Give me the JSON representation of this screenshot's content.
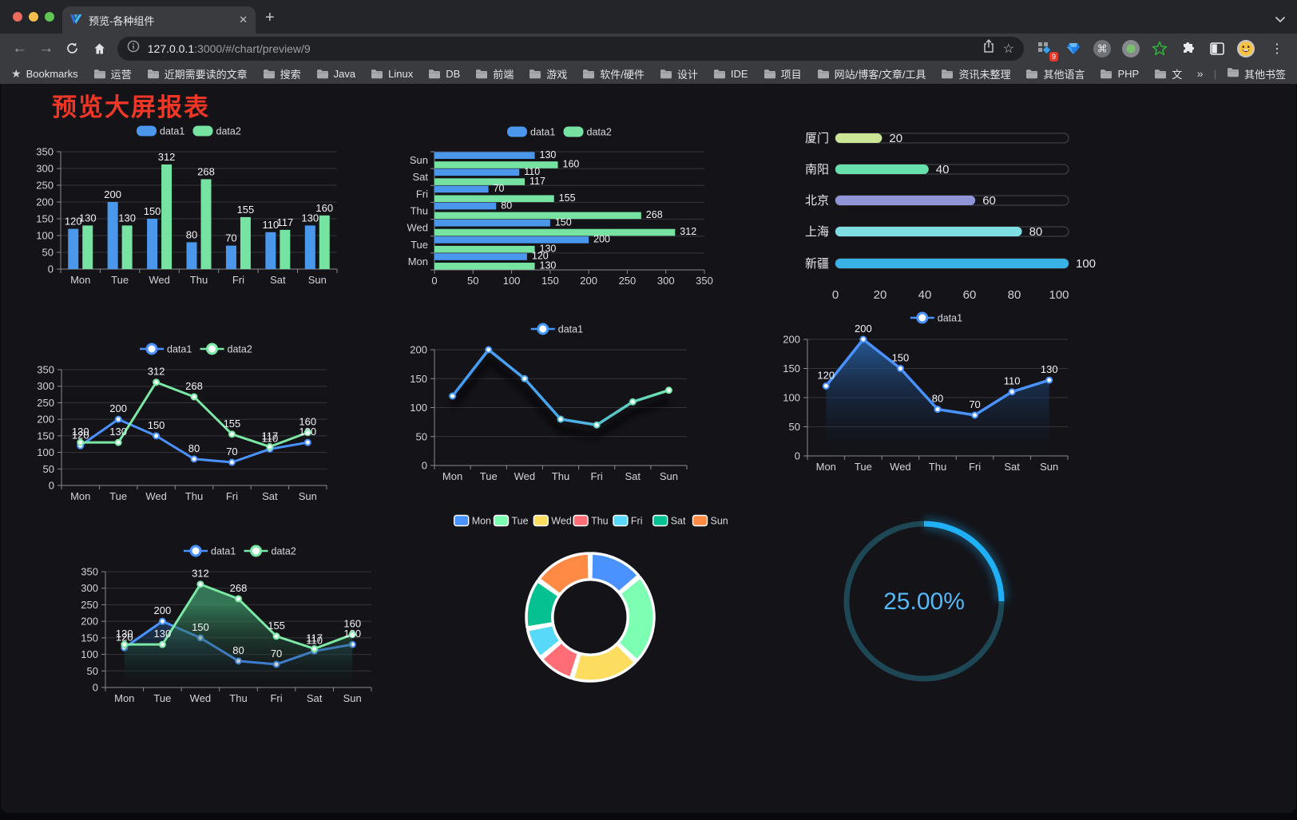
{
  "browser": {
    "tab": {
      "title": "预览-各种组件",
      "close_glyph": "✕",
      "new_tab_glyph": "+"
    },
    "url": {
      "host": "127.0.0.1",
      "rest": ":3000/#/chart/preview/9"
    },
    "extension_badge": "9",
    "bookmarks_label": "Bookmarks",
    "bookmarks": [
      "运营",
      "近期需要读的文章",
      "搜索",
      "Java",
      "Linux",
      "DB",
      "前端",
      "游戏",
      "软件/硬件",
      "设计",
      "IDE",
      "项目",
      "网站/博客/文章/工具",
      "资讯未整理",
      "其他语言",
      "PHP",
      "文件服务器"
    ],
    "bookmarks_overflow": "»",
    "other_bookmarks": "其他书签"
  },
  "page": {
    "title": "预览大屏报表",
    "title_color": "#ee3726"
  },
  "chart_data": [
    {
      "id": "bar-grouped",
      "type": "bar",
      "categories": [
        "Mon",
        "Tue",
        "Wed",
        "Thu",
        "Fri",
        "Sat",
        "Sun"
      ],
      "series": [
        {
          "name": "data1",
          "color": "#4B97EC",
          "values": [
            120,
            200,
            150,
            80,
            70,
            110,
            130
          ]
        },
        {
          "name": "data2",
          "color": "#77E3A3",
          "values": [
            130,
            130,
            312,
            268,
            155,
            117,
            160
          ]
        }
      ],
      "ylim": [
        0,
        350
      ],
      "ytick": 50,
      "legend_position": "top",
      "grid": true
    },
    {
      "id": "hbar-grouped",
      "type": "hbar",
      "categories": [
        "Mon",
        "Tue",
        "Wed",
        "Thu",
        "Fri",
        "Sat",
        "Sun"
      ],
      "series": [
        {
          "name": "data1",
          "color": "#4B97EC",
          "values": [
            120,
            200,
            150,
            80,
            70,
            110,
            130
          ]
        },
        {
          "name": "data2",
          "color": "#77E3A3",
          "values": [
            130,
            130,
            312,
            268,
            155,
            117,
            160
          ]
        }
      ],
      "xlim": [
        0,
        350
      ],
      "xtick": 50,
      "legend_position": "top",
      "grid": true
    },
    {
      "id": "city-progress",
      "type": "progress",
      "items": [
        {
          "label": "厦门",
          "value": 20,
          "color": "#CBE796"
        },
        {
          "label": "南阳",
          "value": 40,
          "color": "#68E0AE"
        },
        {
          "label": "北京",
          "value": 60,
          "color": "#9095D8"
        },
        {
          "label": "上海",
          "value": 80,
          "color": "#7EDEE2"
        },
        {
          "label": "新疆",
          "value": 100,
          "color": "#39B3E6"
        }
      ],
      "xticks": [
        0,
        20,
        40,
        60,
        80,
        100
      ],
      "xlim": [
        0,
        100
      ]
    },
    {
      "id": "line-two",
      "type": "line",
      "categories": [
        "Mon",
        "Tue",
        "Wed",
        "Thu",
        "Fri",
        "Sat",
        "Sun"
      ],
      "series": [
        {
          "name": "data1",
          "color": "#4992FF",
          "values": [
            120,
            200,
            150,
            80,
            70,
            110,
            130
          ]
        },
        {
          "name": "data2",
          "color": "#7CE8A5",
          "values": [
            130,
            130,
            312,
            268,
            155,
            117,
            160
          ]
        }
      ],
      "ylim": [
        0,
        350
      ],
      "ytick": 50,
      "labels": true,
      "legend_position": "top"
    },
    {
      "id": "line-gradient",
      "type": "gradline",
      "categories": [
        "Mon",
        "Tue",
        "Wed",
        "Thu",
        "Fri",
        "Sat",
        "Sun"
      ],
      "series": [
        {
          "name": "data1",
          "values": [
            120,
            200,
            150,
            80,
            70,
            110,
            130
          ]
        }
      ],
      "ylim": [
        0,
        200
      ],
      "ytick": 50,
      "gradient": [
        "#4397F7",
        "#48A9EE",
        "#5FD0C0",
        "#7CF0A8"
      ],
      "legend_position": "top"
    },
    {
      "id": "area-single",
      "type": "area1",
      "categories": [
        "Mon",
        "Tue",
        "Wed",
        "Thu",
        "Fri",
        "Sat",
        "Sun"
      ],
      "series": [
        {
          "name": "data1",
          "color": "#4992FF",
          "values": [
            120,
            200,
            150,
            80,
            70,
            110,
            130
          ]
        }
      ],
      "ylim": [
        0,
        200
      ],
      "ytick": 50,
      "labels": true,
      "legend_position": "top"
    },
    {
      "id": "area-two",
      "type": "area2",
      "categories": [
        "Mon",
        "Tue",
        "Wed",
        "Thu",
        "Fri",
        "Sat",
        "Sun"
      ],
      "series": [
        {
          "name": "data1",
          "color": "#4992FF",
          "values": [
            120,
            200,
            150,
            80,
            70,
            110,
            130
          ]
        },
        {
          "name": "data2",
          "color": "#7CE8A5",
          "values": [
            130,
            130,
            312,
            268,
            155,
            117,
            160
          ]
        }
      ],
      "ylim": [
        0,
        350
      ],
      "ytick": 50,
      "labels": true,
      "legend_position": "top"
    },
    {
      "id": "donut",
      "type": "pie",
      "labels": [
        "Mon",
        "Tue",
        "Wed",
        "Thu",
        "Fri",
        "Sat",
        "Sun"
      ],
      "values": [
        120,
        200,
        150,
        80,
        70,
        110,
        130
      ],
      "colors": [
        "#4992FF",
        "#7CFFB2",
        "#FDDD60",
        "#FF6E76",
        "#58D9F9",
        "#05C091",
        "#FF8A45"
      ],
      "legend_position": "top",
      "inner_radius_ratio": 0.59
    },
    {
      "id": "ring-progress",
      "type": "gauge",
      "value": 25,
      "label": "25.00%",
      "color": "#1FB0F6",
      "track_color": "#1D4754",
      "text_color": "#56B7F7"
    }
  ]
}
